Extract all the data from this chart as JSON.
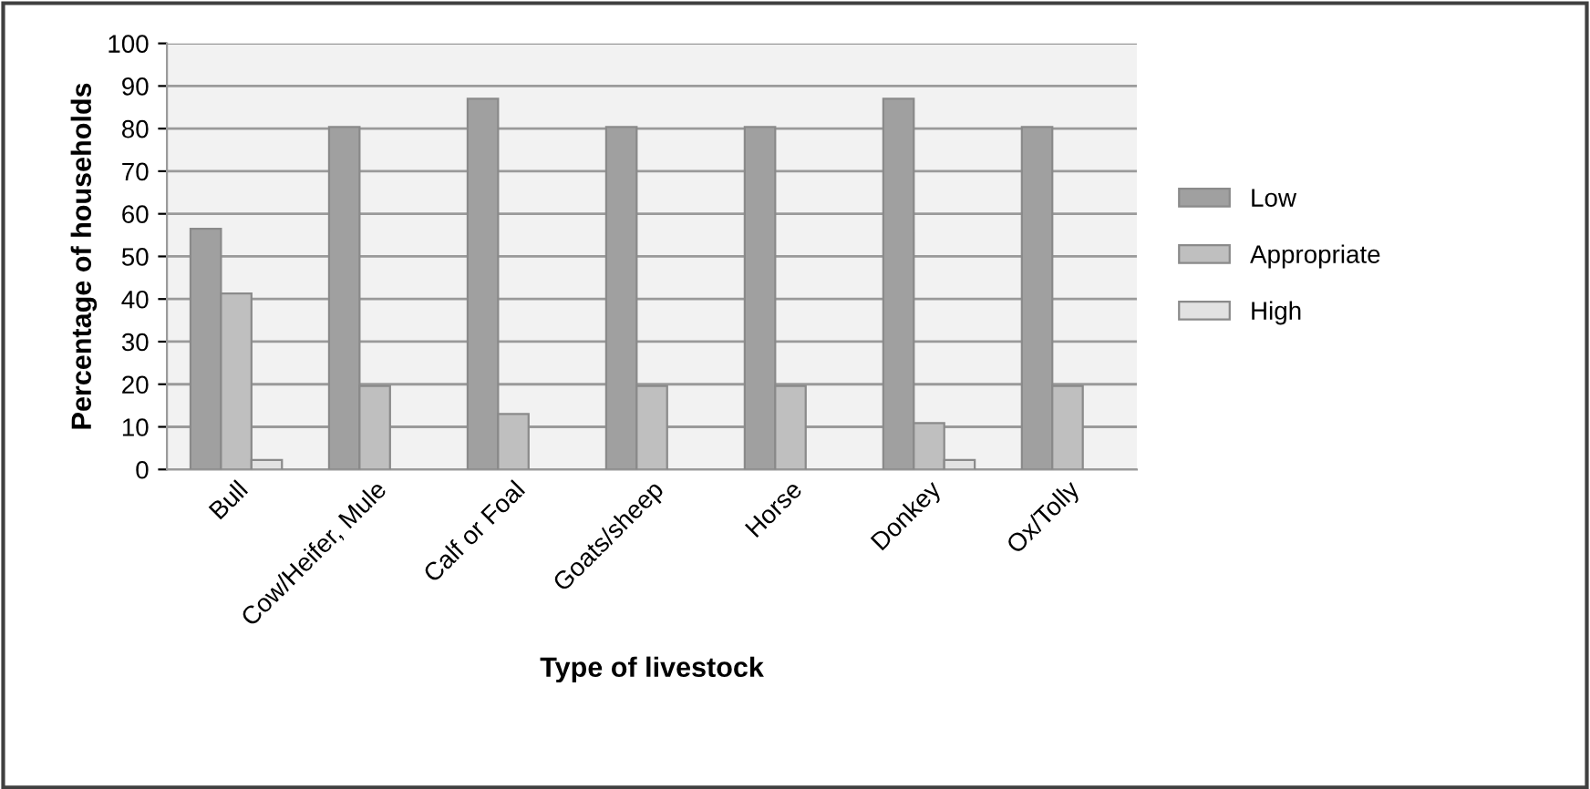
{
  "chart_data": {
    "type": "bar",
    "xlabel": "Type of livestock",
    "ylabel": "Percentage of households",
    "categories": [
      "Bull",
      "Cow/Heifer, Mule",
      "Calf or Foal",
      "Goats/sheep",
      "Horse",
      "Donkey",
      "Ox/Tolly"
    ],
    "series": [
      {
        "name": "Low",
        "color": "#a0a0a0",
        "values": [
          56.5,
          80.4,
          87,
          80.4,
          80.4,
          87,
          80.4
        ]
      },
      {
        "name": "Appropriate",
        "color": "#bfbfbf",
        "values": [
          41.3,
          19.6,
          13,
          19.6,
          19.6,
          10.9,
          19.6
        ]
      },
      {
        "name": "High",
        "color": "#e2e2e2",
        "values": [
          2.2,
          null,
          null,
          null,
          null,
          2.2,
          null
        ]
      }
    ],
    "ylim": [
      0,
      100
    ],
    "yticks": [
      0,
      10,
      20,
      30,
      40,
      50,
      60,
      70,
      80,
      90,
      100
    ],
    "grid": "y",
    "legend": "right"
  }
}
